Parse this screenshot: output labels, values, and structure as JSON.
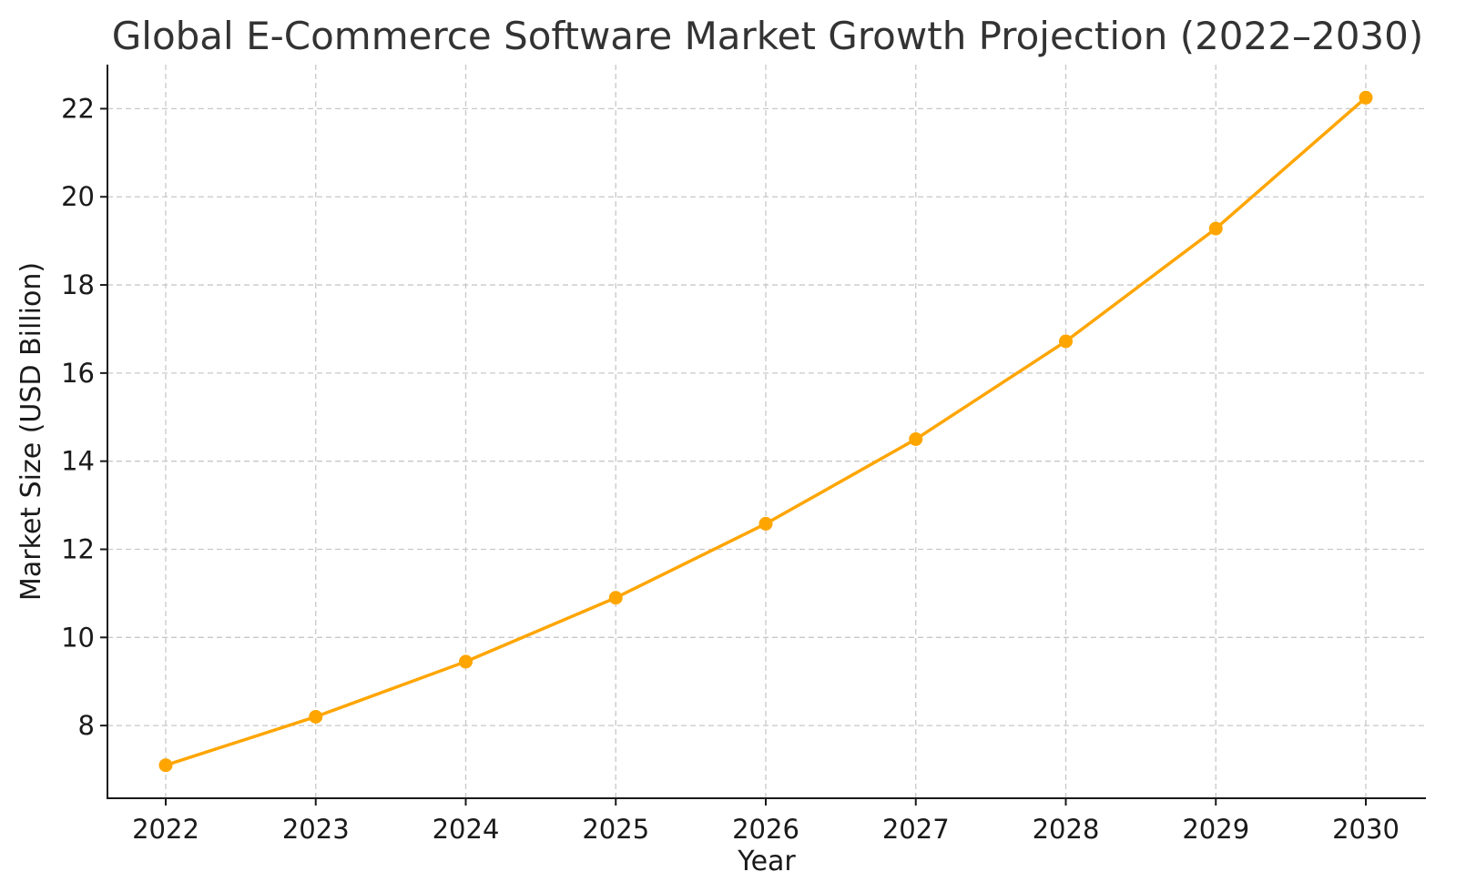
{
  "chart_data": {
    "type": "line",
    "title": "Global E-Commerce Software Market Growth Projection (2022–2030)",
    "xlabel": "Year",
    "ylabel": "Market Size (USD Billion)",
    "x": [
      "2022",
      "2023",
      "2024",
      "2025",
      "2026",
      "2027",
      "2028",
      "2029",
      "2030"
    ],
    "series": [
      {
        "values": [
          7.1,
          8.2,
          9.45,
          10.9,
          12.58,
          14.5,
          16.72,
          19.28,
          22.25
        ],
        "color": "#ffa500"
      }
    ],
    "yticks": [
      "8",
      "10",
      "12",
      "14",
      "16",
      "18",
      "20",
      "22"
    ],
    "ylim": [
      6.35,
      23.0
    ],
    "grid": true,
    "marker": "circle"
  }
}
